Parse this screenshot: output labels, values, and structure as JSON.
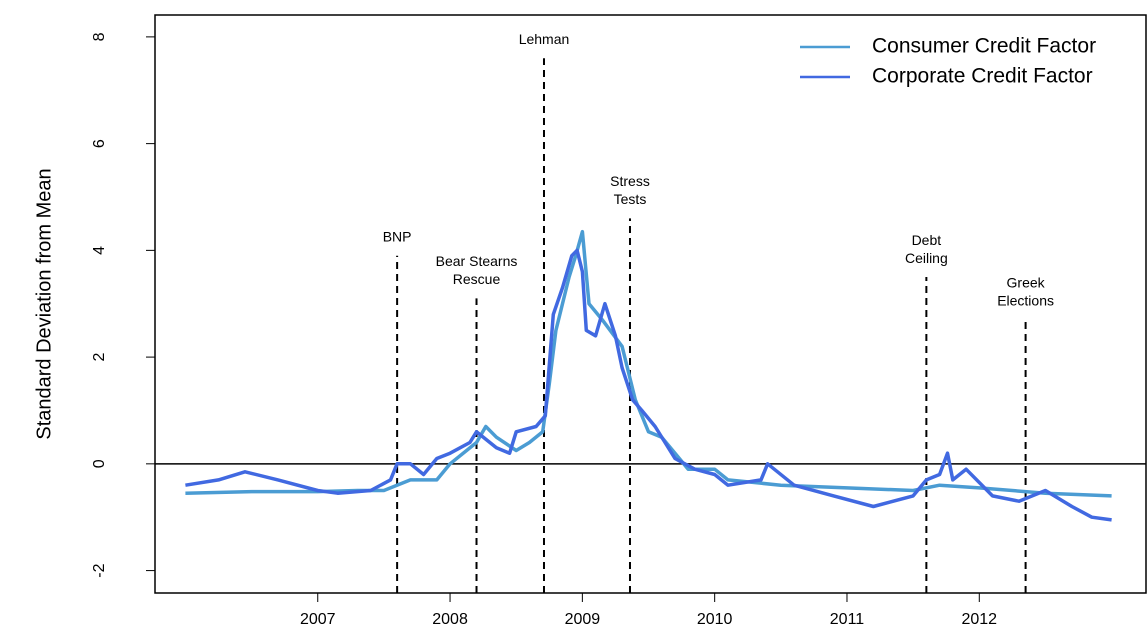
{
  "chart_data": {
    "type": "line",
    "y_label": "Standard Deviation from Mean",
    "xlim": [
      2005.77,
      2013.26
    ],
    "ylim": [
      -2.42,
      8.41
    ],
    "xticks": [
      2007,
      2008,
      2009,
      2010,
      2011,
      2012
    ],
    "yticks": [
      -2,
      0,
      2,
      4,
      6,
      8
    ],
    "hline": 0,
    "legend": "top-right",
    "series": [
      {
        "name": "Consumer Credit Factor",
        "color": "#4b9cd3",
        "x": [
          2006.0,
          2006.5,
          2007.0,
          2007.3,
          2007.5,
          2007.7,
          2007.9,
          2008.0,
          2008.2,
          2008.27,
          2008.35,
          2008.5,
          2008.6,
          2008.7,
          2008.75,
          2008.8,
          2008.9,
          2008.95,
          2009.0,
          2009.05,
          2009.15,
          2009.3,
          2009.4,
          2009.5,
          2009.6,
          2009.7,
          2009.8,
          2010.0,
          2010.1,
          2010.5,
          2011.0,
          2011.5,
          2011.7,
          2012.0,
          2012.5,
          2013.0
        ],
        "values": [
          -0.55,
          -0.52,
          -0.52,
          -0.5,
          -0.5,
          -0.3,
          -0.3,
          0.0,
          0.4,
          0.7,
          0.5,
          0.25,
          0.4,
          0.6,
          1.5,
          2.5,
          3.5,
          3.9,
          4.35,
          3.0,
          2.7,
          2.2,
          1.2,
          0.6,
          0.5,
          0.2,
          -0.1,
          -0.1,
          -0.3,
          -0.4,
          -0.45,
          -0.5,
          -0.4,
          -0.45,
          -0.55,
          -0.6
        ]
      },
      {
        "name": "Corporate Credit Factor",
        "color": "#4169e1",
        "x": [
          2006.0,
          2006.25,
          2006.45,
          2006.7,
          2007.0,
          2007.15,
          2007.4,
          2007.55,
          2007.6,
          2007.7,
          2007.8,
          2007.9,
          2008.0,
          2008.15,
          2008.2,
          2008.35,
          2008.45,
          2008.5,
          2008.65,
          2008.72,
          2008.78,
          2008.85,
          2008.92,
          2008.96,
          2009.0,
          2009.03,
          2009.1,
          2009.17,
          2009.25,
          2009.3,
          2009.38,
          2009.45,
          2009.55,
          2009.7,
          2009.85,
          2010.0,
          2010.1,
          2010.35,
          2010.4,
          2010.6,
          2010.9,
          2011.2,
          2011.5,
          2011.6,
          2011.7,
          2011.76,
          2011.8,
          2011.9,
          2012.1,
          2012.3,
          2012.5,
          2012.7,
          2012.85,
          2013.0
        ],
        "values": [
          -0.4,
          -0.3,
          -0.15,
          -0.3,
          -0.5,
          -0.55,
          -0.5,
          -0.3,
          0.0,
          0.0,
          -0.2,
          0.1,
          0.2,
          0.4,
          0.6,
          0.3,
          0.2,
          0.6,
          0.7,
          0.9,
          2.8,
          3.3,
          3.9,
          4.0,
          3.6,
          2.5,
          2.4,
          3.0,
          2.4,
          1.8,
          1.2,
          1.0,
          0.7,
          0.1,
          -0.1,
          -0.2,
          -0.4,
          -0.3,
          0.0,
          -0.4,
          -0.6,
          -0.8,
          -0.6,
          -0.3,
          -0.2,
          0.2,
          -0.3,
          -0.1,
          -0.6,
          -0.7,
          -0.5,
          -0.8,
          -1.0,
          -1.05
        ]
      }
    ],
    "annotations": [
      {
        "label": [
          "BNP"
        ],
        "x": 2007.6,
        "y": 3.9
      },
      {
        "label": [
          "Bear Stearns",
          "Rescue"
        ],
        "x": 2008.2,
        "y": 3.1
      },
      {
        "label": [
          "Lehman"
        ],
        "x": 2008.71,
        "y": 7.6
      },
      {
        "label": [
          "Stress",
          "Tests"
        ],
        "x": 2009.36,
        "y": 4.6
      },
      {
        "label": [
          "Debt",
          "Ceiling"
        ],
        "x": 2011.6,
        "y": 3.5
      },
      {
        "label": [
          "Greek",
          "Elections"
        ],
        "x": 2012.35,
        "y": 2.7
      }
    ]
  }
}
